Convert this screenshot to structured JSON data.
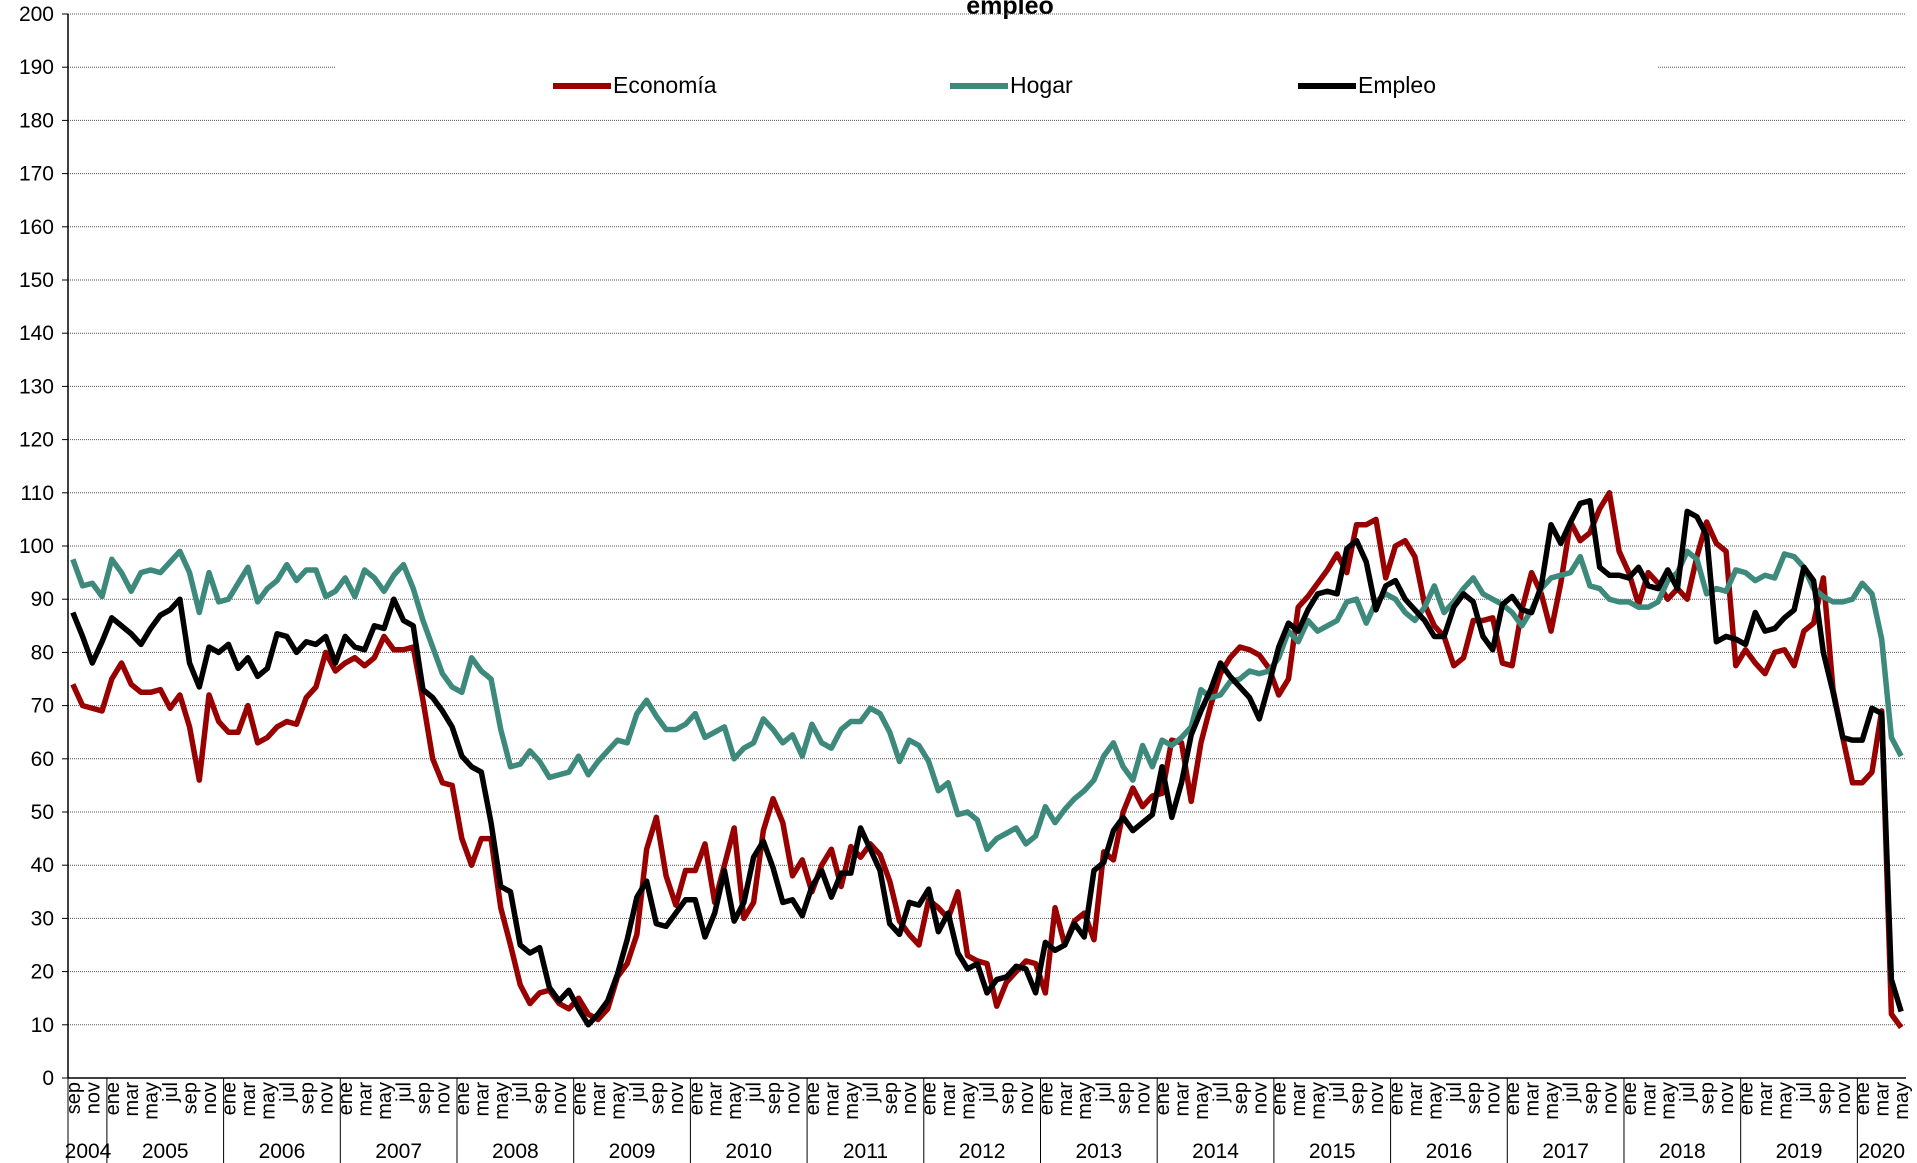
{
  "chart_data": {
    "type": "line",
    "title": "empleo",
    "categories": [
      "sep",
      null,
      "nov",
      null,
      "ene",
      null,
      "mar",
      null,
      "may",
      null,
      "jul",
      null,
      "sep",
      null,
      "nov",
      null,
      "ene",
      null,
      "mar",
      null,
      "may",
      null,
      "jul",
      null,
      "sep",
      null,
      "nov",
      null,
      "ene",
      null,
      "mar",
      null,
      "may",
      null,
      "jul",
      null,
      "sep",
      null,
      "nov",
      null,
      "ene",
      null,
      "mar",
      null,
      "may",
      null,
      "jul",
      null,
      "sep",
      null,
      "nov",
      null,
      "ene",
      null,
      "mar",
      null,
      "may",
      null,
      "jul",
      null,
      "sep",
      null,
      "nov",
      null,
      "ene",
      null,
      "mar",
      null,
      "may",
      null,
      "jul",
      null,
      "sep",
      null,
      "nov",
      null,
      "ene",
      null,
      "mar",
      null,
      "may",
      null,
      "jul",
      null,
      "sep",
      null,
      "nov",
      null,
      "ene",
      null,
      "mar",
      null,
      "may",
      null,
      "jul",
      null,
      "sep",
      null,
      "nov",
      null,
      "ene",
      null,
      "mar",
      null,
      "may",
      null,
      "jul",
      null,
      "sep",
      null,
      "nov",
      null,
      "ene",
      null,
      "mar",
      null,
      "may",
      null,
      "jul",
      null,
      "sep",
      null,
      "nov",
      null,
      "ene",
      null,
      "mar",
      null,
      "may",
      null,
      "jul",
      null,
      "sep",
      null,
      "nov",
      null,
      "ene",
      null,
      "mar",
      null,
      "may",
      null,
      "jul",
      null,
      "sep",
      null,
      "nov",
      null,
      "ene",
      null,
      "mar",
      null,
      "may",
      null,
      "jul",
      null,
      "sep",
      null,
      "nov",
      null,
      "ene",
      null,
      "mar",
      null,
      "may",
      null,
      "jul",
      null,
      "sep",
      null,
      "nov",
      null,
      "ene",
      null,
      "mar",
      null,
      "may",
      null,
      "jul",
      null,
      "sep",
      null,
      "nov",
      null,
      "ene",
      null,
      "mar",
      null,
      "may"
    ],
    "years": [
      "2004",
      "2005",
      "2006",
      "2007",
      "2008",
      "2009",
      "2010",
      "2011",
      "2012",
      "2013",
      "2014",
      "2015",
      "2016",
      "2017",
      "2018",
      "2019",
      "2020"
    ],
    "series": [
      {
        "name": "Economía",
        "color": "#990000",
        "values": [
          74,
          70,
          69.5,
          69,
          75,
          78,
          74,
          72.5,
          72.5,
          73,
          69.5,
          72,
          66,
          56,
          72,
          67,
          65,
          65,
          70,
          63,
          64,
          66,
          67,
          66.5,
          71.5,
          73.5,
          80,
          76.5,
          78,
          79,
          77.5,
          79,
          83,
          80.5,
          80.5,
          81,
          71,
          60,
          55.5,
          55,
          45,
          40,
          45,
          45,
          32,
          25,
          17.5,
          14,
          16,
          16.5,
          14,
          13,
          15,
          12,
          11,
          13,
          19,
          21.5,
          27,
          43,
          49,
          38,
          32.5,
          39,
          39,
          44,
          33,
          40,
          47,
          30,
          33,
          46.5,
          52.5,
          48,
          38,
          41,
          35,
          40,
          43,
          36,
          43.5,
          41.5,
          44,
          42,
          37,
          29.5,
          27,
          25,
          33.5,
          32,
          30,
          35,
          23,
          22,
          21.5,
          13.5,
          18,
          20,
          22,
          21.5,
          16,
          32,
          25,
          29.5,
          31,
          26,
          42.5,
          41,
          50,
          54.5,
          51,
          53,
          53.5,
          63.5,
          63,
          52,
          63,
          70,
          76,
          79,
          81,
          80.5,
          79.5,
          77,
          72,
          75,
          88.5,
          90.5,
          93,
          95.5,
          98.5,
          95,
          104,
          104,
          105,
          94,
          100,
          101,
          98,
          89,
          85,
          83,
          77.5,
          79,
          86,
          86,
          86.5,
          78,
          77.5,
          88,
          95,
          91,
          84,
          93,
          104.5,
          101,
          102.5,
          107,
          110,
          99,
          95,
          89,
          95,
          93,
          90,
          92,
          90,
          98,
          104.5,
          100.5,
          99,
          77.5,
          80.5,
          78,
          76,
          80,
          80.5,
          77.5,
          84,
          85.5,
          94,
          73,
          64,
          55.5,
          55.5,
          57.5,
          69,
          12,
          9.5
        ]
      },
      {
        "name": "Hogar",
        "color": "#3d8a7c",
        "values": [
          97.5,
          92.5,
          93,
          90.5,
          97.5,
          95,
          91.5,
          95,
          95.5,
          95,
          97,
          99,
          95,
          87.5,
          95,
          89.5,
          90,
          93,
          96,
          89.5,
          92,
          93.5,
          96.5,
          93.5,
          95.5,
          95.5,
          90.5,
          91.5,
          94,
          90.5,
          95.5,
          94,
          91.5,
          94.5,
          96.5,
          92,
          86,
          81,
          76,
          73.5,
          72.5,
          79,
          76.5,
          75,
          65.5,
          58.5,
          59,
          61.5,
          59.5,
          56.5,
          57,
          57.5,
          60.5,
          57,
          59.5,
          61.5,
          63.5,
          63,
          68.5,
          71,
          68,
          65.5,
          65.5,
          66.5,
          68.5,
          64,
          65,
          66,
          60,
          62,
          63,
          67.5,
          65.5,
          63,
          64.5,
          60.5,
          66.5,
          63,
          62,
          65.5,
          67,
          67,
          69.5,
          68.5,
          65,
          59.5,
          63.5,
          62.5,
          59.5,
          54,
          55.5,
          49.5,
          50,
          48.5,
          43,
          45,
          46,
          47,
          44,
          45.5,
          51,
          48,
          50.5,
          52.5,
          54,
          56,
          60.5,
          63,
          58.5,
          56,
          62.5,
          58.5,
          63.5,
          62.5,
          64,
          66,
          73,
          71.5,
          72,
          74.5,
          75,
          76.5,
          76,
          76.5,
          79,
          84,
          82,
          86,
          84,
          85,
          86,
          89.5,
          90,
          85.5,
          89.5,
          91,
          90,
          87.5,
          86,
          88.5,
          92.5,
          87.5,
          89.5,
          92,
          94,
          91,
          90,
          89,
          87.5,
          85,
          88,
          92,
          94,
          94.5,
          95,
          98,
          92.5,
          92,
          90,
          89.5,
          89.5,
          88.5,
          88.5,
          89.5,
          93.5,
          95,
          99,
          97.5,
          91,
          92,
          91.5,
          95.5,
          95,
          93.5,
          94.5,
          94,
          98.5,
          98,
          96,
          92,
          90.5,
          89.5,
          89.5,
          90,
          93,
          91,
          82.5,
          64,
          60.5
        ]
      },
      {
        "name": "Empleo",
        "color": "#000000",
        "values": [
          87.5,
          83,
          78,
          82,
          86.5,
          85,
          83.5,
          81.5,
          84.5,
          87,
          88,
          90,
          78,
          73.5,
          81,
          80,
          81.5,
          77,
          79,
          75.5,
          77,
          83.5,
          83,
          80,
          82,
          81.5,
          83,
          78,
          83,
          81,
          80.5,
          85,
          84.5,
          90,
          86,
          85,
          73,
          71.5,
          69,
          66,
          60.5,
          58.5,
          57.5,
          48,
          36,
          35,
          25,
          23.5,
          24.5,
          17,
          14.5,
          16.5,
          13,
          10,
          12,
          14.5,
          19.5,
          26,
          34,
          37,
          29,
          28.5,
          31,
          33.5,
          33.5,
          26.5,
          31,
          39,
          29.5,
          33,
          41.5,
          44.5,
          39.5,
          33,
          33.5,
          30.5,
          36,
          39,
          34,
          38.5,
          38.5,
          47,
          43,
          39,
          29,
          27,
          33,
          32.5,
          35.5,
          27.5,
          31,
          23.5,
          20.5,
          21.5,
          16,
          18.5,
          19,
          21,
          20.5,
          16,
          25.5,
          24,
          25,
          29,
          26.5,
          39,
          40.5,
          46.5,
          49,
          46.5,
          48,
          49.5,
          58.5,
          49,
          55.5,
          64.5,
          69,
          73,
          78,
          75.5,
          73.5,
          71.5,
          67.5,
          74,
          81,
          85.5,
          84,
          88,
          91,
          91.5,
          91,
          99.5,
          101,
          97,
          88,
          92.5,
          93.5,
          90,
          88,
          86,
          83,
          83,
          88.5,
          91,
          89.5,
          83,
          80.5,
          89,
          90.5,
          88,
          87.5,
          92.5,
          104,
          100.5,
          104.5,
          108,
          108.5,
          96,
          94.5,
          94.5,
          94,
          96,
          92.5,
          92,
          95.5,
          92,
          106.5,
          105.5,
          102,
          82,
          83,
          82.5,
          81.5,
          87.5,
          84,
          84.5,
          86.5,
          88,
          96,
          93.5,
          80,
          72.5,
          64,
          63.5,
          63.5,
          69.5,
          68.5,
          18.5,
          12.5
        ]
      }
    ],
    "ylim": [
      0,
      200
    ],
    "yticks": [
      0,
      10,
      20,
      30,
      40,
      50,
      60,
      70,
      80,
      90,
      100,
      110,
      120,
      130,
      140,
      150,
      160,
      170,
      180,
      190,
      200
    ],
    "grid": true
  }
}
